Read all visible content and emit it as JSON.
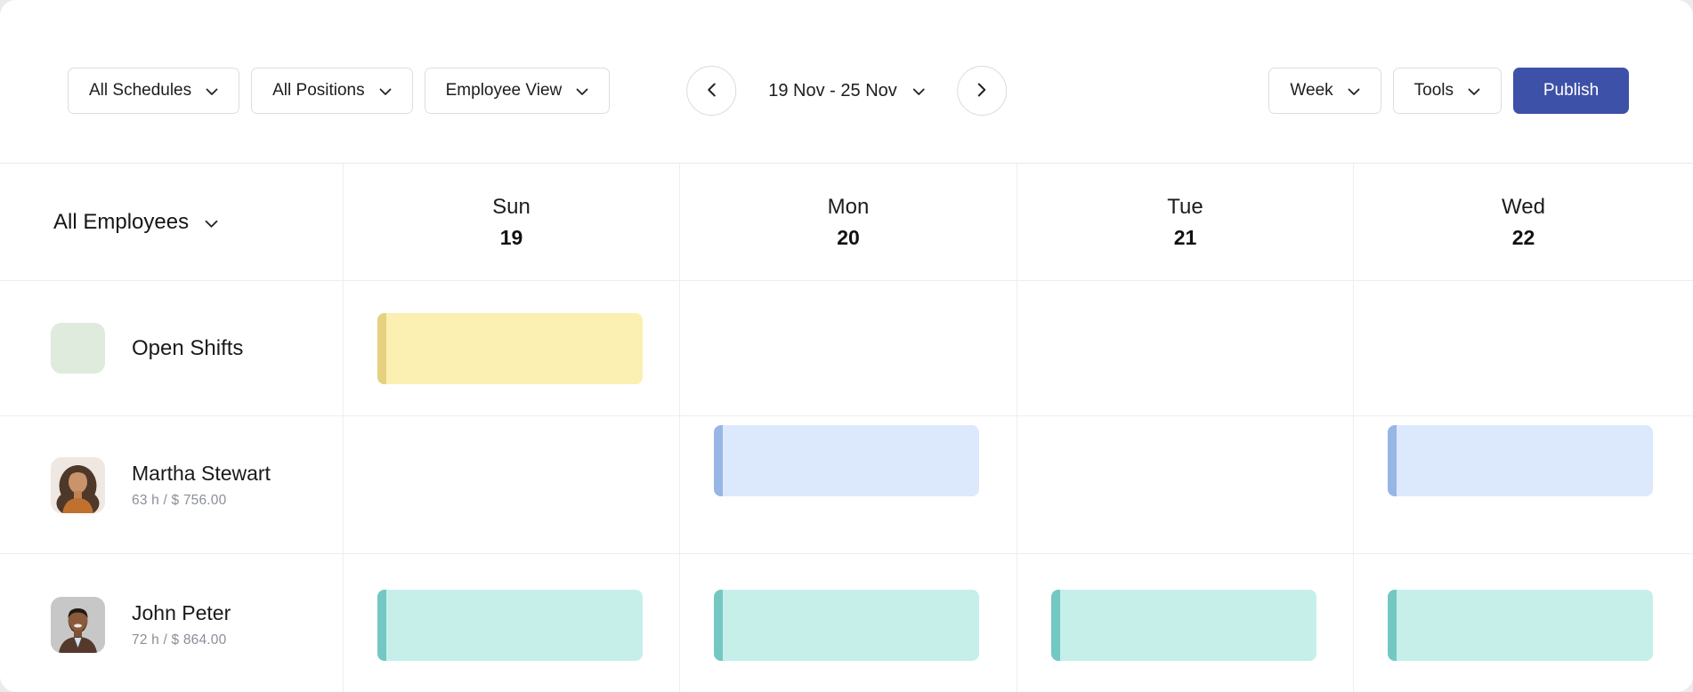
{
  "toolbar": {
    "schedules_filter": "All Schedules",
    "positions_filter": "All Positions",
    "view_mode_filter": "Employee View",
    "date_range": "19 Nov - 25 Nov",
    "period_selector": "Week",
    "tools_menu": "Tools",
    "publish_button": "Publish"
  },
  "grid": {
    "employees_header": "All Employees",
    "days": [
      {
        "name": "Sun",
        "date": "19"
      },
      {
        "name": "Mon",
        "date": "20"
      },
      {
        "name": "Tue",
        "date": "21"
      },
      {
        "name": "Wed",
        "date": "22"
      }
    ],
    "rows": [
      {
        "label": "Open Shifts"
      },
      {
        "name": "Martha Stewart",
        "stats": "63 h / $ 756.00"
      },
      {
        "name": "John Peter",
        "stats": "72 h / $ 864.00"
      }
    ],
    "shifts": [
      {
        "row": 0,
        "day": 0,
        "color": "yellow"
      },
      {
        "row": 1,
        "day": 1,
        "color": "blue"
      },
      {
        "row": 1,
        "day": 3,
        "color": "blue"
      },
      {
        "row": 2,
        "day": 0,
        "color": "teal"
      },
      {
        "row": 2,
        "day": 1,
        "color": "teal"
      },
      {
        "row": 2,
        "day": 2,
        "color": "teal"
      },
      {
        "row": 2,
        "day": 3,
        "color": "teal"
      }
    ]
  },
  "colors": {
    "primary": "#3E51A8",
    "page-bg": "#EBEBEB",
    "open-shifts-swatch": "#DFEBDD",
    "shift-yellow-fill": "#FBEFB1",
    "shift-yellow-accent": "#E5D17F",
    "shift-blue-fill": "#DCE9FC",
    "shift-blue-accent": "#97B6E5",
    "shift-teal-fill": "#C6EFEA",
    "shift-teal-accent": "#74C8C3"
  }
}
